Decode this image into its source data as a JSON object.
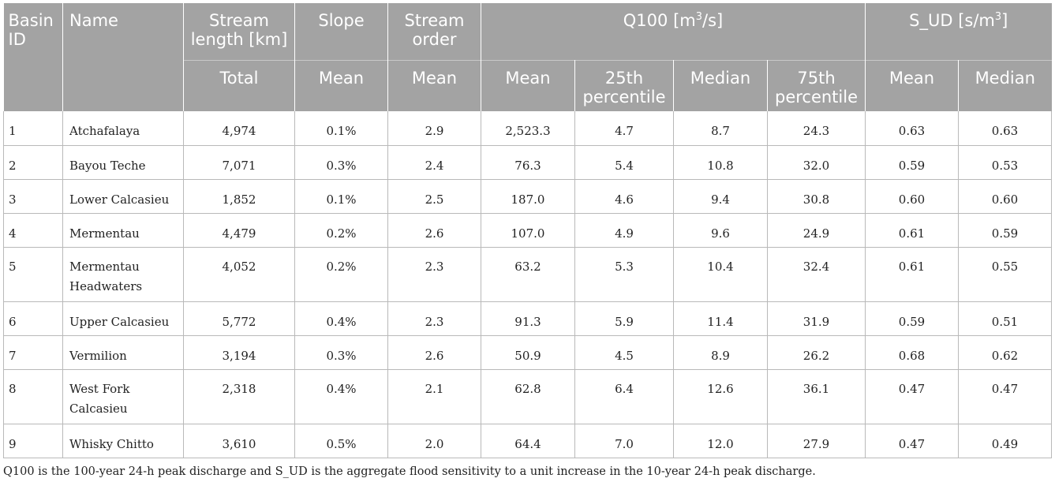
{
  "header": {
    "basin_id": [
      "Basin",
      "ID"
    ],
    "name": "Name",
    "stream_length": [
      "Stream",
      "length [km]"
    ],
    "slope": "Slope",
    "stream_order": [
      "Stream",
      "order"
    ],
    "q100": "Q100 [m",
    "q100_sup": "3",
    "q100_tail": "/s]",
    "sud": "S_UD [s/m",
    "sud_sup": "3",
    "sud_tail": "]",
    "sub": {
      "total": "Total",
      "slope_mean": "Mean",
      "order_mean": "Mean",
      "q_mean": "Mean",
      "q_p25": [
        "25th",
        "percentile"
      ],
      "q_median": "Median",
      "q_p75": [
        "75th",
        "percentile"
      ],
      "s_mean": "Mean",
      "s_median": "Median"
    }
  },
  "rows": [
    {
      "id": "1",
      "name": [
        "Atchafalaya"
      ],
      "length": "4,974",
      "slope": "0.1%",
      "order": "2.9",
      "q_mean": "2,523.3",
      "q_p25": "4.7",
      "q_median": "8.7",
      "q_p75": "24.3",
      "s_mean": "0.63",
      "s_median": "0.63"
    },
    {
      "id": "2",
      "name": [
        "Bayou Teche"
      ],
      "length": "7,071",
      "slope": "0.3%",
      "order": "2.4",
      "q_mean": "76.3",
      "q_p25": "5.4",
      "q_median": "10.8",
      "q_p75": "32.0",
      "s_mean": "0.59",
      "s_median": "0.53"
    },
    {
      "id": "3",
      "name": [
        "Lower Calcasieu"
      ],
      "length": "1,852",
      "slope": "0.1%",
      "order": "2.5",
      "q_mean": "187.0",
      "q_p25": "4.6",
      "q_median": "9.4",
      "q_p75": "30.8",
      "s_mean": "0.60",
      "s_median": "0.60"
    },
    {
      "id": "4",
      "name": [
        "Mermentau"
      ],
      "length": "4,479",
      "slope": "0.2%",
      "order": "2.6",
      "q_mean": "107.0",
      "q_p25": "4.9",
      "q_median": "9.6",
      "q_p75": "24.9",
      "s_mean": "0.61",
      "s_median": "0.59"
    },
    {
      "id": "5",
      "name": [
        "Mermentau",
        "Headwaters"
      ],
      "length": "4,052",
      "slope": "0.2%",
      "order": "2.3",
      "q_mean": "63.2",
      "q_p25": "5.3",
      "q_median": "10.4",
      "q_p75": "32.4",
      "s_mean": "0.61",
      "s_median": "0.55"
    },
    {
      "id": "6",
      "name": [
        "Upper Calcasieu"
      ],
      "length": "5,772",
      "slope": "0.4%",
      "order": "2.3",
      "q_mean": "91.3",
      "q_p25": "5.9",
      "q_median": "11.4",
      "q_p75": "31.9",
      "s_mean": "0.59",
      "s_median": "0.51"
    },
    {
      "id": "7",
      "name": [
        "Vermilion"
      ],
      "length": "3,194",
      "slope": "0.3%",
      "order": "2.6",
      "q_mean": "50.9",
      "q_p25": "4.5",
      "q_median": "8.9",
      "q_p75": "26.2",
      "s_mean": "0.68",
      "s_median": "0.62"
    },
    {
      "id": "8",
      "name": [
        "West Fork",
        "Calcasieu"
      ],
      "length": "2,318",
      "slope": "0.4%",
      "order": "2.1",
      "q_mean": "62.8",
      "q_p25": "6.4",
      "q_median": "12.6",
      "q_p75": "36.1",
      "s_mean": "0.47",
      "s_median": "0.47"
    },
    {
      "id": "9",
      "name": [
        "Whisky Chitto"
      ],
      "length": "3,610",
      "slope": "0.5%",
      "order": "2.0",
      "q_mean": "64.4",
      "q_p25": "7.0",
      "q_median": "12.0",
      "q_p75": "27.9",
      "s_mean": "0.47",
      "s_median": "0.49"
    }
  ],
  "footnote": "Q100 is the 100-year 24-h peak discharge and S_UD is the aggregate flood sensitivity to a unit increase in the 10-year 24-h peak discharge."
}
